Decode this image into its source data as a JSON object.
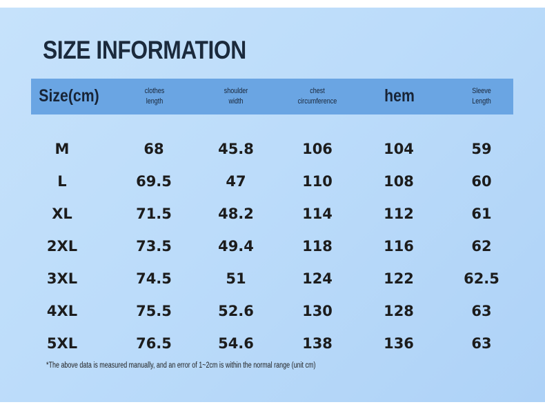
{
  "title": "SIZE INFORMATION",
  "headers": [
    "Size(cm)",
    "clothes\nlength",
    "shoulder\nwidth",
    "chest\ncircumference",
    "hem",
    "Sleeve\nLength"
  ],
  "rows": [
    [
      "M",
      "68",
      "45.8",
      "106",
      "104",
      "59"
    ],
    [
      "L",
      "69.5",
      "47",
      "110",
      "108",
      "60"
    ],
    [
      "XL",
      "71.5",
      "48.2",
      "114",
      "112",
      "61"
    ],
    [
      "2XL",
      "73.5",
      "49.4",
      "118",
      "116",
      "62"
    ],
    [
      "3XL",
      "74.5",
      "51",
      "124",
      "122",
      "62.5"
    ],
    [
      "4XL",
      "75.5",
      "52.6",
      "130",
      "128",
      "63"
    ],
    [
      "5XL",
      "76.5",
      "54.6",
      "138",
      "136",
      "63"
    ]
  ],
  "note": "*The above data is measured manually, and an error of 1~2cm is within the normal range (unit cm)",
  "colors": {
    "background": "#bcdcfa",
    "header_band": "#6aa5e3",
    "text": "#1c1c1c"
  }
}
